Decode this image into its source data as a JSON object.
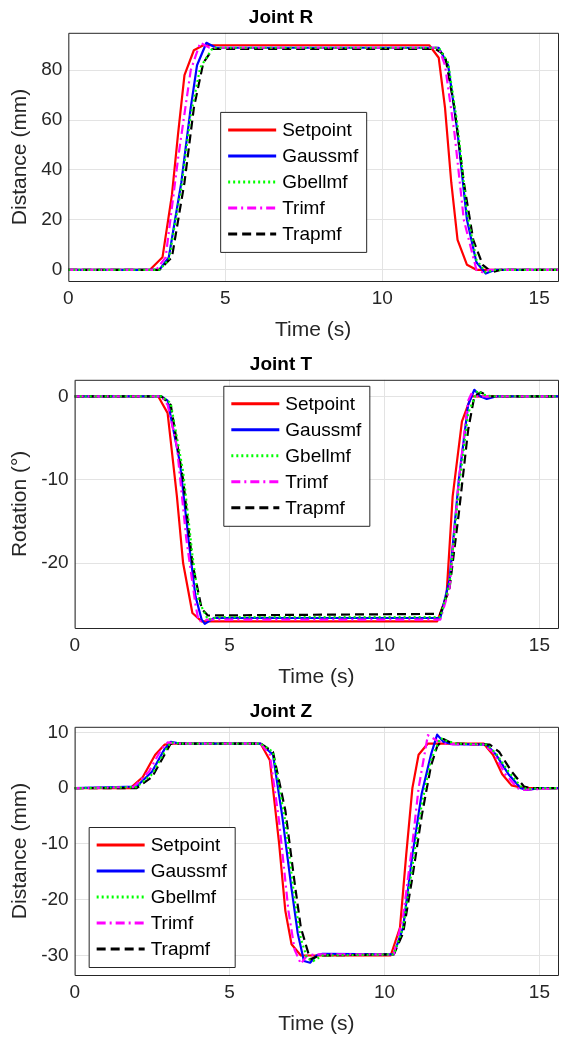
{
  "chart_data": [
    {
      "type": "line",
      "title": "Joint R",
      "xlabel": "Time (s)",
      "ylabel": "Distance (mm)",
      "xlim": [
        0,
        15.6
      ],
      "xticks": [
        0,
        5,
        10,
        15
      ],
      "ylim": [
        -4.5,
        95
      ],
      "yticks": [
        0,
        20,
        40,
        60,
        80
      ],
      "grid": true,
      "legend": "center",
      "marker": "none",
      "series": [
        {
          "name": "Setpoint",
          "color": "#ff0000",
          "line_style": "solid",
          "x": [
            0,
            2.6,
            3.0,
            3.3,
            3.5,
            3.7,
            4.0,
            4.3,
            11.5,
            11.8,
            12.0,
            12.2,
            12.4,
            12.7,
            13.0,
            15.6
          ],
          "values": [
            0,
            0,
            5,
            30,
            55,
            78,
            88,
            90,
            90,
            85,
            65,
            35,
            12,
            2,
            0,
            0
          ]
        },
        {
          "name": "Gaussmf",
          "color": "#0000ff",
          "line_style": "solid",
          "x": [
            0,
            2.9,
            3.2,
            3.6,
            3.9,
            4.1,
            4.4,
            4.7,
            11.8,
            12.1,
            12.4,
            12.7,
            13.0,
            13.3,
            13.6,
            15.6
          ],
          "values": [
            0,
            0,
            5,
            35,
            65,
            82,
            91,
            89,
            89,
            82,
            55,
            20,
            3,
            -1.5,
            0,
            0
          ]
        },
        {
          "name": "Gbellmf",
          "color": "#00ff00",
          "line_style": "dotted",
          "x": [
            0,
            2.9,
            3.2,
            3.6,
            3.9,
            4.2,
            4.6,
            11.8,
            12.1,
            12.4,
            12.7,
            13.0,
            13.3,
            13.6,
            15.6
          ],
          "values": [
            0,
            0,
            4,
            33,
            62,
            81,
            89,
            89,
            83,
            58,
            23,
            4,
            -1,
            0,
            0
          ]
        },
        {
          "name": "Trimf",
          "color": "#ff00ff",
          "line_style": "dashdot",
          "x": [
            0,
            2.8,
            3.1,
            3.5,
            3.9,
            4.2,
            4.5,
            11.8,
            12.0,
            12.3,
            12.6,
            13.0,
            13.2,
            13.4,
            15.6
          ],
          "values": [
            0,
            0,
            5,
            45,
            80,
            91,
            89,
            89,
            82,
            55,
            20,
            0,
            -1,
            0,
            0
          ]
        },
        {
          "name": "Trapmf",
          "color": "#000000",
          "line_style": "dashed",
          "x": [
            0,
            2.9,
            3.3,
            3.7,
            4.0,
            4.3,
            4.6,
            11.7,
            12.0,
            12.3,
            12.6,
            12.9,
            13.2,
            13.5,
            13.8,
            15.6
          ],
          "values": [
            0,
            0,
            5,
            35,
            65,
            83,
            88.5,
            88.5,
            86,
            65,
            35,
            12,
            2,
            -1,
            0,
            0
          ]
        }
      ]
    },
    {
      "type": "line",
      "title": "Joint T",
      "xlabel": "Time (s)",
      "ylabel": "Rotation (°)",
      "xlim": [
        0,
        15.6
      ],
      "xticks": [
        0,
        5,
        10,
        15
      ],
      "ylim": [
        -27.8,
        2
      ],
      "yticks": [
        -20,
        -10,
        0
      ],
      "grid": true,
      "legend": "top",
      "marker": "none",
      "series": [
        {
          "name": "Setpoint",
          "color": "#ff0000",
          "line_style": "solid",
          "x": [
            0,
            2.7,
            3.0,
            3.3,
            3.5,
            3.8,
            4.1,
            11.7,
            12.0,
            12.2,
            12.5,
            12.8,
            15.6
          ],
          "values": [
            0,
            0,
            -2,
            -12,
            -20,
            -26,
            -27,
            -27,
            -24,
            -12,
            -3,
            0,
            0
          ]
        },
        {
          "name": "Gaussmf",
          "color": "#0000ff",
          "line_style": "solid",
          "x": [
            0,
            2.8,
            3.0,
            3.4,
            3.7,
            3.9,
            4.1,
            4.2,
            4.5,
            11.8,
            12.1,
            12.4,
            12.7,
            12.9,
            13.1,
            13.3,
            13.6,
            15.6
          ],
          "values": [
            0,
            0,
            -0.5,
            -8,
            -18,
            -24,
            -26.8,
            -27.3,
            -26.6,
            -26.6,
            -22,
            -10,
            -1,
            0.8,
            0,
            -0.3,
            0,
            0
          ]
        },
        {
          "name": "Gbellmf",
          "color": "#00ff00",
          "line_style": "dotted",
          "x": [
            0,
            2.8,
            3.1,
            3.5,
            3.8,
            4.0,
            4.3,
            4.6,
            11.8,
            12.1,
            12.4,
            12.7,
            13.0,
            13.2,
            13.5,
            15.6
          ],
          "values": [
            0,
            0,
            -0.8,
            -9,
            -19,
            -24.5,
            -26.8,
            -26.5,
            -26.5,
            -22.5,
            -11,
            -2,
            0.7,
            0.2,
            0,
            0
          ]
        },
        {
          "name": "Trimf",
          "color": "#ff00ff",
          "line_style": "dashdot",
          "x": [
            0,
            2.8,
            3.0,
            3.3,
            3.6,
            3.9,
            4.0,
            4.3,
            11.8,
            12.1,
            12.4,
            12.7,
            12.8,
            13.0,
            15.6
          ],
          "values": [
            0,
            0,
            -1,
            -6,
            -17,
            -25,
            -27,
            -26.8,
            -26.8,
            -23,
            -10,
            -0.5,
            0.3,
            0,
            0
          ]
        },
        {
          "name": "Trapmf",
          "color": "#000000",
          "line_style": "dashed",
          "x": [
            0,
            2.8,
            3.1,
            3.5,
            3.8,
            4.1,
            4.3,
            11.8,
            12.1,
            12.4,
            12.7,
            12.9,
            13.1,
            13.4,
            15.6
          ],
          "values": [
            0,
            0,
            -1,
            -10,
            -20,
            -25.5,
            -26.3,
            -26.1,
            -23,
            -14,
            -4,
            0,
            0.5,
            0,
            0
          ]
        }
      ]
    },
    {
      "type": "line",
      "title": "Joint Z",
      "xlabel": "Time (s)",
      "ylabel": "Distance (mm)",
      "xlim": [
        0,
        15.6
      ],
      "xticks": [
        0,
        5,
        10,
        15
      ],
      "ylim": [
        -33.5,
        11
      ],
      "yticks": [
        -30,
        -20,
        -10,
        0,
        10
      ],
      "grid": true,
      "legend": "bottom left",
      "marker": "none",
      "series": [
        {
          "name": "Setpoint",
          "color": "#ff0000",
          "line_style": "solid",
          "x": [
            0,
            1.8,
            2.2,
            2.6,
            2.9,
            3.2,
            6.0,
            6.3,
            6.6,
            6.8,
            7.0,
            7.3,
            10.2,
            10.5,
            10.7,
            10.9,
            11.1,
            11.4,
            13.2,
            13.5,
            13.8,
            14.1,
            14.5,
            15.6
          ],
          "values": [
            0,
            0,
            2,
            6,
            7.8,
            8,
            8,
            5,
            -10,
            -22,
            -28,
            -30,
            -30,
            -25,
            -12,
            0,
            6,
            8,
            8,
            6,
            2.5,
            0.5,
            0,
            0
          ]
        },
        {
          "name": "Gaussmf",
          "color": "#0000ff",
          "line_style": "solid",
          "x": [
            0,
            2.0,
            2.5,
            2.9,
            3.1,
            3.4,
            6.0,
            6.4,
            6.7,
            7.0,
            7.2,
            7.4,
            7.6,
            7.8,
            8.0,
            10.3,
            10.6,
            10.9,
            11.2,
            11.5,
            11.7,
            11.9,
            12.2,
            13.3,
            13.6,
            14.0,
            14.4,
            14.6,
            15.0,
            15.6
          ],
          "values": [
            0,
            0.3,
            3,
            7,
            8.3,
            8,
            8,
            6,
            -5,
            -18,
            -26,
            -31,
            -31.3,
            -30,
            -29.7,
            -29.8,
            -25,
            -12,
            -1,
            6,
            9.6,
            8.3,
            7.9,
            7.8,
            6,
            2.5,
            0,
            -0.3,
            0,
            0
          ]
        },
        {
          "name": "Gbellmf",
          "color": "#00ff00",
          "line_style": "dotted",
          "x": [
            0,
            2.0,
            2.5,
            2.9,
            3.1,
            3.4,
            6.0,
            6.4,
            6.8,
            7.1,
            7.3,
            7.5,
            7.7,
            8.0,
            10.3,
            10.6,
            10.9,
            11.2,
            11.5,
            11.8,
            12.0,
            12.3,
            13.3,
            13.6,
            14.0,
            14.4,
            14.6,
            15.0,
            15.6
          ],
          "values": [
            0,
            0.2,
            2.5,
            6.5,
            8.2,
            8,
            8,
            6.5,
            -6,
            -20,
            -27,
            -30.5,
            -31,
            -30,
            -29.8,
            -25,
            -14,
            -3,
            5,
            9,
            8.5,
            8,
            7.8,
            6.2,
            3,
            0.3,
            -0.2,
            0,
            0
          ]
        },
        {
          "name": "Trimf",
          "color": "#ff00ff",
          "line_style": "dashdot",
          "x": [
            0,
            1.9,
            2.4,
            2.8,
            3.0,
            3.3,
            6.0,
            6.3,
            6.6,
            6.9,
            7.1,
            7.3,
            7.5,
            7.8,
            10.3,
            10.6,
            10.9,
            11.1,
            11.4,
            11.7,
            12.0,
            13.2,
            13.5,
            13.9,
            14.3,
            14.5,
            15.6
          ],
          "values": [
            0,
            0.2,
            3,
            7,
            8.2,
            8,
            8,
            6,
            -6,
            -22,
            -29,
            -31.5,
            -30,
            -29.8,
            -29.8,
            -23,
            -10,
            0,
            9.5,
            8.5,
            7.9,
            7.8,
            6.5,
            2.5,
            0,
            -0.3,
            0
          ]
        },
        {
          "name": "Trapmf",
          "color": "#000000",
          "line_style": "dashed",
          "x": [
            0,
            2.0,
            2.5,
            2.9,
            3.1,
            3.4,
            6.0,
            6.4,
            6.8,
            7.1,
            7.3,
            7.6,
            7.9,
            10.3,
            10.6,
            10.9,
            11.2,
            11.5,
            11.7,
            11.9,
            12.2,
            13.4,
            13.7,
            14.1,
            14.5,
            14.7,
            15.6
          ],
          "values": [
            0,
            0,
            2,
            6,
            8,
            8,
            8,
            6.5,
            -4,
            -17,
            -25,
            -30.7,
            -30,
            -29.8,
            -26,
            -16,
            -5,
            4,
            7.5,
            8.8,
            8,
            7.8,
            6.5,
            3,
            0.3,
            0,
            0
          ]
        }
      ]
    }
  ]
}
